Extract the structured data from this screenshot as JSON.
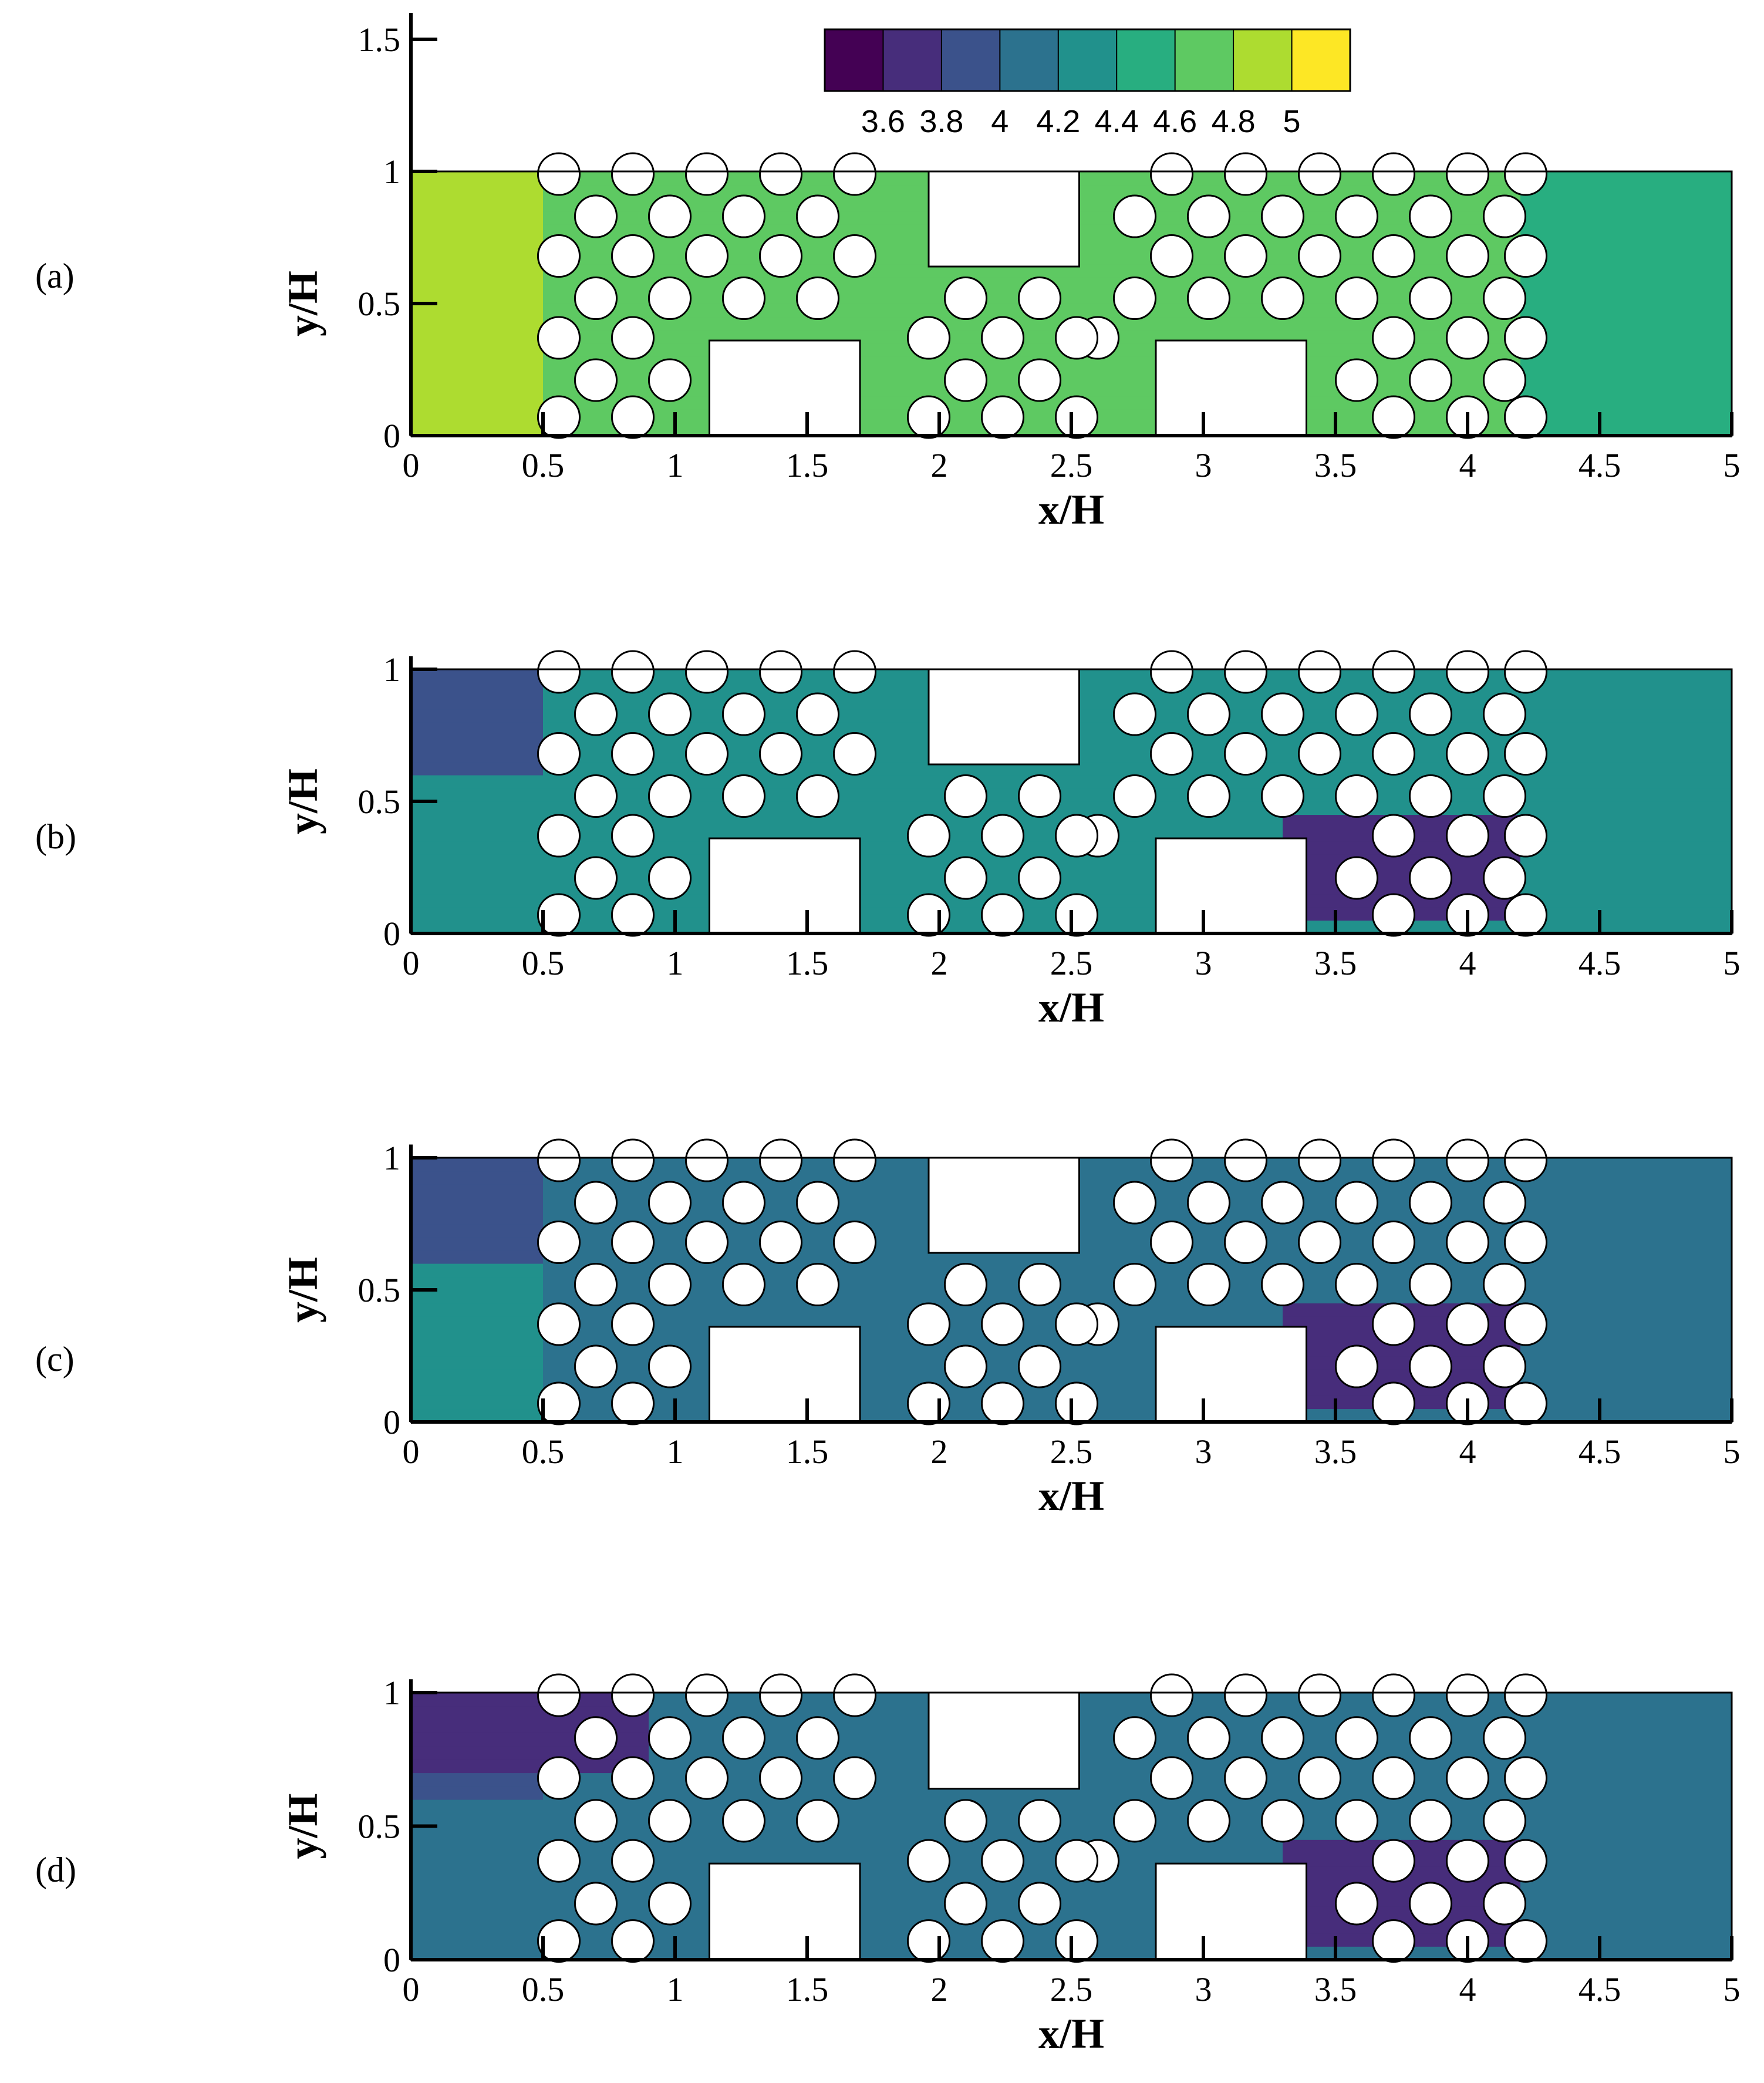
{
  "colorbar": {
    "levels": [
      3.5,
      3.6,
      3.8,
      4.0,
      4.2,
      4.4,
      4.6,
      4.8,
      5.0,
      5.1
    ],
    "colors": [
      "#440154",
      "#472d7b",
      "#3b528b",
      "#2c728e",
      "#21918c",
      "#28ae80",
      "#5ec962",
      "#addc30",
      "#fde725"
    ],
    "tick_labels": [
      "3.6",
      "3.8",
      "4",
      "4.2",
      "4.4",
      "4.6",
      "4.8",
      "5"
    ]
  },
  "chart_data": [
    {
      "type": "heatmap",
      "panel": "(a)",
      "xlabel": "x/H",
      "ylabel": "y/H",
      "xlim": [
        0,
        5
      ],
      "ylim": [
        0,
        1.6
      ],
      "x_ticks": [
        "0",
        "0.5",
        "1",
        "1.5",
        "2",
        "2.5",
        "3",
        "3.5",
        "4",
        "4.5",
        "5"
      ],
      "y_ticks": [
        "0",
        "0.5",
        "1",
        "1.5"
      ],
      "field_min": 4.4,
      "field_max": 4.9,
      "inlet_value": 4.85,
      "outlet_value": 4.55
    },
    {
      "type": "heatmap",
      "panel": "(b)",
      "xlabel": "x/H",
      "ylabel": "y/H",
      "xlim": [
        0,
        5
      ],
      "ylim": [
        0,
        1.05
      ],
      "x_ticks": [
        "0",
        "0.5",
        "1",
        "1.5",
        "2",
        "2.5",
        "3",
        "3.5",
        "4",
        "4.5",
        "5"
      ],
      "y_ticks": [
        "0",
        "0.5",
        "1"
      ],
      "field_min": 3.6,
      "field_max": 4.6,
      "inlet_value": 4.3,
      "outlet_value": 4.25
    },
    {
      "type": "heatmap",
      "panel": "(c)",
      "xlabel": "x/H",
      "ylabel": "y/H",
      "xlim": [
        0,
        5
      ],
      "ylim": [
        0,
        1.05
      ],
      "x_ticks": [
        "0",
        "0.5",
        "1",
        "1.5",
        "2",
        "2.5",
        "3",
        "3.5",
        "4",
        "4.5",
        "5"
      ],
      "y_ticks": [
        "0",
        "0.5",
        "1"
      ],
      "field_min": 3.6,
      "field_max": 4.5,
      "inlet_value": 4.2,
      "outlet_value": 4.1
    },
    {
      "type": "heatmap",
      "panel": "(d)",
      "xlabel": "x/H",
      "ylabel": "y/H",
      "xlim": [
        0,
        5
      ],
      "ylim": [
        0,
        1.05
      ],
      "x_ticks": [
        "0",
        "0.5",
        "1",
        "1.5",
        "2",
        "2.5",
        "3",
        "3.5",
        "4",
        "4.5",
        "5"
      ],
      "y_ticks": [
        "0",
        "0.5",
        "1"
      ],
      "field_min": 3.6,
      "field_max": 4.4,
      "inlet_value": 4.1,
      "outlet_value": 4.0
    }
  ]
}
